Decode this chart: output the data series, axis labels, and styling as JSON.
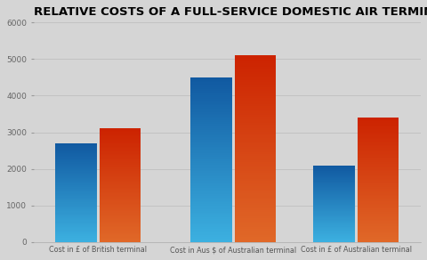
{
  "title": "RELATIVE COSTS OF A FULL-SERVICE DOMESTIC AIR TERMINAL",
  "categories": [
    "Cost in £ of British terminal",
    "Cost in Aus $ of Australian terminal",
    "Cost in £ of Australian terminal"
  ],
  "blue_values": [
    2700,
    4500,
    2100
  ],
  "red_values": [
    3100,
    5100,
    3400
  ],
  "blue_top_color": "#1e6fa8",
  "blue_bottom_color": "#1a8fd1",
  "red_top_color": "#c83c1e",
  "red_bottom_color": "#e06030",
  "background_color": "#d5d5d5",
  "title_fontsize": 9.5,
  "ylim": [
    0,
    6000
  ],
  "yticks": [
    0,
    1000,
    2000,
    3000,
    4000,
    5000,
    6000
  ],
  "bar_width": 0.32,
  "x_positions": [
    0.5,
    1.55,
    2.5
  ]
}
